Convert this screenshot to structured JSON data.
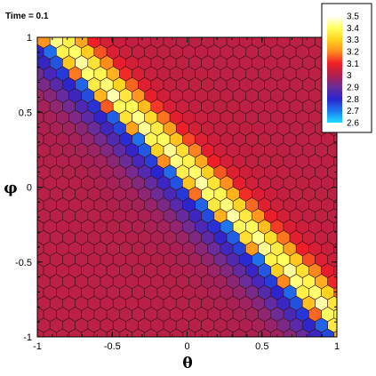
{
  "annotation": {
    "time_label": "Time = 0.1"
  },
  "chart_data": {
    "type": "heatmap",
    "grid": "hexagonal",
    "x": {
      "label": "θ",
      "range": [
        -1,
        1
      ],
      "ticks": [
        "-1",
        "-0.5",
        "0",
        "0.5",
        "1"
      ]
    },
    "y": {
      "label": "φ",
      "range": [
        -1,
        1
      ],
      "ticks": [
        "1",
        "0.5",
        "0",
        "-0.5",
        "-1"
      ]
    },
    "colorbar": {
      "labels": [
        "3.5",
        "3.4",
        "3.3",
        "3.2",
        "3.1",
        "3",
        "2.9",
        "2.8",
        "2.7",
        "2.6"
      ],
      "range": [
        2.6,
        3.5
      ],
      "stops": [
        {
          "value": 3.5,
          "color": "#ffffff"
        },
        {
          "value": 3.4,
          "color": "#ffff60"
        },
        {
          "value": 3.3,
          "color": "#ffd21e"
        },
        {
          "value": 3.2,
          "color": "#ff8c1e"
        },
        {
          "value": 3.1,
          "color": "#f01e28"
        },
        {
          "value": 3.0,
          "color": "#b0204c"
        },
        {
          "value": 2.9,
          "color": "#6a2c9a"
        },
        {
          "value": 2.8,
          "color": "#2a24cf"
        },
        {
          "value": 2.7,
          "color": "#1e78f0"
        },
        {
          "value": 2.6,
          "color": "#1edcff"
        }
      ]
    },
    "field": {
      "background_value": 3.02,
      "front_line": "phi = -theta",
      "front_side_values": [
        3.15,
        3.35,
        3.45,
        3.38,
        3.3,
        3.2,
        3.1
      ],
      "back_side_values": [
        2.7,
        2.8,
        2.88,
        2.94,
        2.98
      ]
    }
  }
}
